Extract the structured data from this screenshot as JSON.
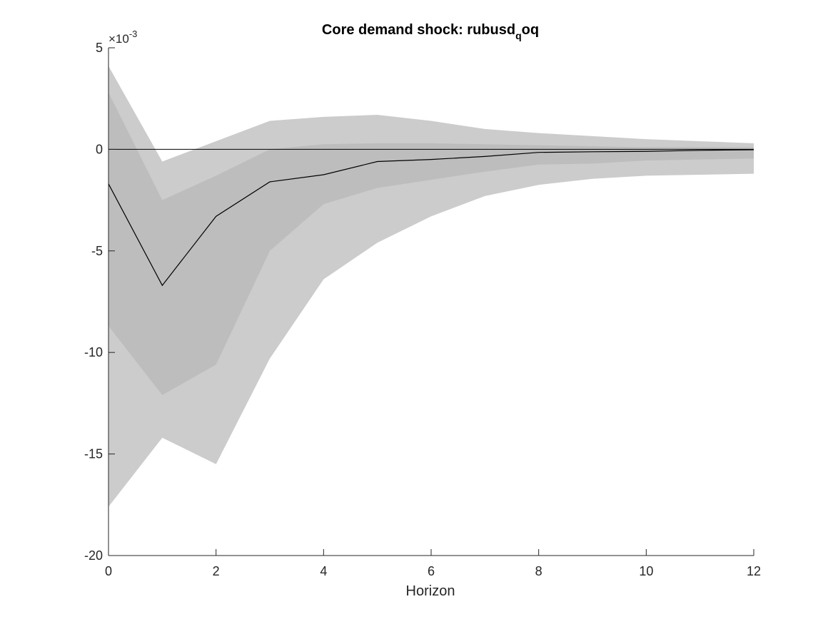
{
  "chart_data": {
    "type": "area",
    "title": {
      "main": "Core demand shock: rubusd",
      "subscript": "q",
      "suffix": "oq"
    },
    "xlabel": "Horizon",
    "ylabel": "",
    "y_exponent_label": "×10",
    "y_exponent_power": "-3",
    "xlim": [
      0,
      12
    ],
    "ylim": [
      -20,
      5
    ],
    "x_ticks": [
      "0",
      "2",
      "4",
      "6",
      "8",
      "10",
      "12"
    ],
    "y_ticks": [
      "5",
      "0",
      "-5",
      "-10",
      "-15",
      "-20"
    ],
    "x": [
      0,
      1,
      2,
      3,
      4,
      5,
      6,
      7,
      8,
      9,
      10,
      11,
      12
    ],
    "series": [
      {
        "band": "outer",
        "upper": [
          4.1,
          -0.6,
          0.4,
          1.4,
          1.6,
          1.7,
          1.4,
          1.0,
          0.8,
          0.65,
          0.5,
          0.4,
          0.3
        ],
        "lower": [
          -17.6,
          -14.2,
          -15.5,
          -10.3,
          -6.4,
          -4.6,
          -3.3,
          -2.3,
          -1.75,
          -1.45,
          -1.3,
          -1.25,
          -1.2
        ]
      },
      {
        "band": "inner",
        "upper": [
          2.8,
          -2.5,
          -1.3,
          0.0,
          0.25,
          0.3,
          0.3,
          0.25,
          0.2,
          0.15,
          0.1,
          0.1,
          0.1
        ],
        "lower": [
          -8.7,
          -12.1,
          -10.6,
          -5.0,
          -2.7,
          -1.9,
          -1.5,
          -1.1,
          -0.75,
          -0.7,
          -0.55,
          -0.5,
          -0.45
        ]
      },
      {
        "line": "median",
        "values": [
          -1.7,
          -6.7,
          -3.3,
          -1.6,
          -1.25,
          -0.6,
          -0.5,
          -0.35,
          -0.15,
          -0.12,
          -0.1,
          -0.05,
          -0.02
        ]
      }
    ],
    "zero_line": 0,
    "colors": {
      "outer_band": "#cccccc",
      "inner_band": "#bdbdbd",
      "line": "#000000",
      "axis": "#262626"
    },
    "grid": false,
    "legend": "none"
  }
}
